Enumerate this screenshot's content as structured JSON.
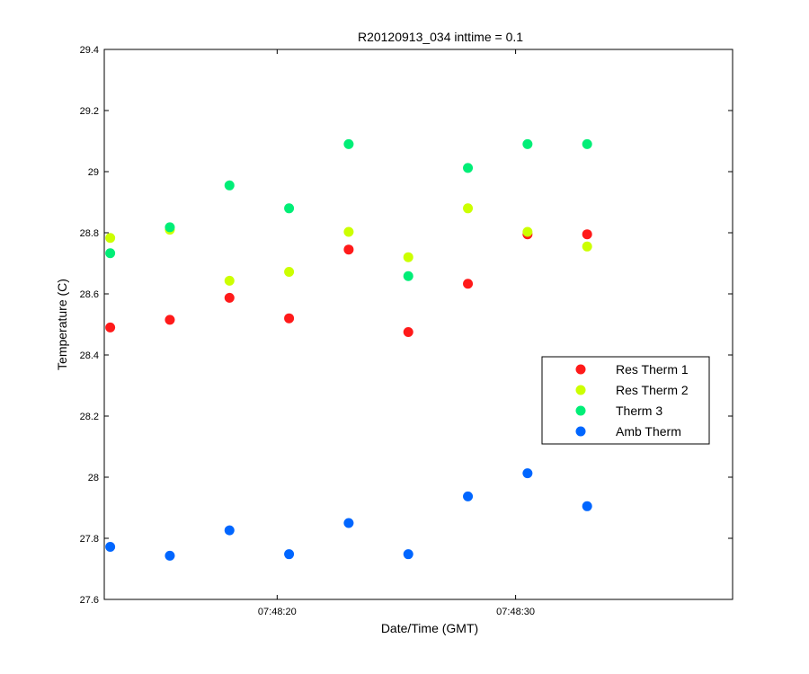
{
  "chart_data": {
    "type": "scatter",
    "title": "R20120913_034 inttime = 0.1",
    "xlabel": "Date/Time (GMT)",
    "ylabel": "Temperature (C)",
    "x_axis": {
      "unit": "seconds after 07:48:00 GMT",
      "range": [
        12.75,
        39.1
      ],
      "ticks": [
        {
          "value": 20,
          "label": "07:48:20"
        },
        {
          "value": 30,
          "label": "07:48:30"
        }
      ]
    },
    "y_axis": {
      "range": [
        27.6,
        29.4
      ],
      "ticks": [
        "27.6",
        "27.8",
        "28",
        "28.2",
        "28.4",
        "28.6",
        "28.8",
        "29",
        "29.2",
        "29.4"
      ]
    },
    "grid": false,
    "legend_position": "right",
    "x": [
      13.0,
      15.5,
      18.0,
      20.5,
      23.0,
      25.5,
      28.0,
      30.5,
      33.0
    ],
    "series": [
      {
        "name": "Res Therm 1",
        "color": "#ff1a1a",
        "values": [
          28.49,
          28.515,
          28.587,
          28.52,
          28.745,
          28.475,
          28.633,
          28.795,
          28.795
        ]
      },
      {
        "name": "Res Therm 2",
        "color": "#ccff00",
        "values": [
          28.783,
          28.81,
          28.643,
          28.672,
          28.803,
          28.72,
          28.88,
          28.803,
          28.755
        ]
      },
      {
        "name": "Therm 3",
        "color": "#00ee77",
        "values": [
          28.733,
          28.818,
          28.955,
          28.88,
          29.09,
          28.658,
          29.012,
          29.09,
          29.09
        ]
      },
      {
        "name": "Amb Therm",
        "color": "#0066ff",
        "values": [
          27.772,
          27.743,
          27.826,
          27.748,
          27.85,
          27.748,
          27.937,
          28.013,
          27.905
        ]
      }
    ]
  }
}
